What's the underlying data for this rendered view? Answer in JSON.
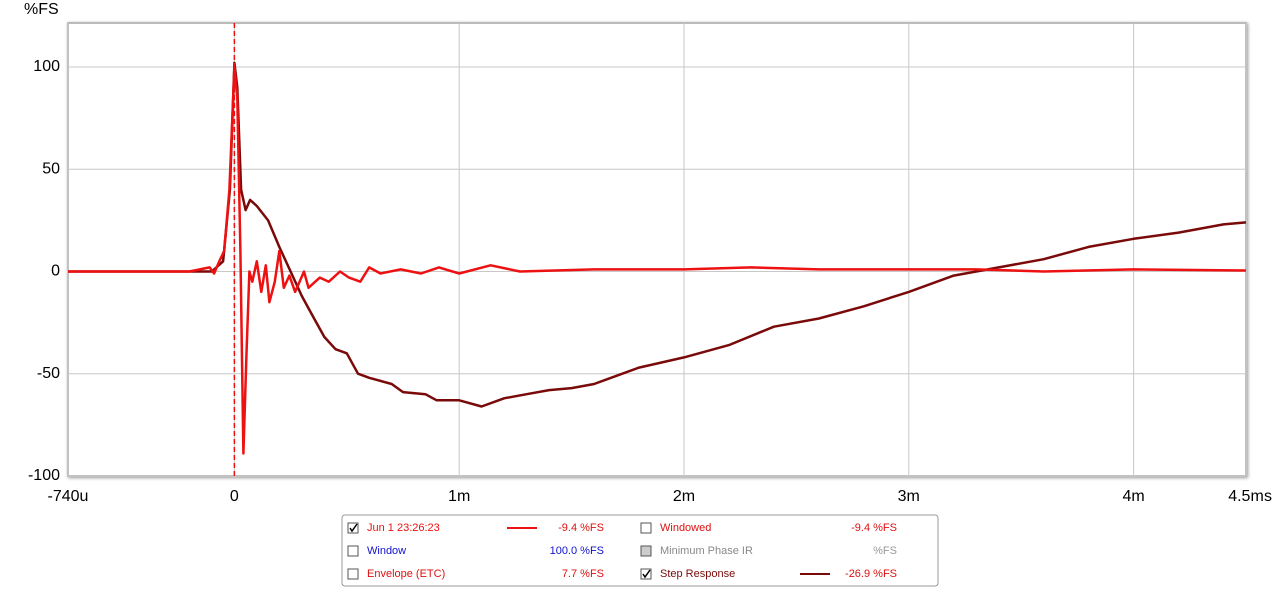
{
  "chart_data": {
    "type": "line",
    "y_label": "%FS",
    "x_unit": "s",
    "xlim": [
      -0.00074,
      0.0045
    ],
    "ylim": [
      -100,
      121.5
    ],
    "xticks": [
      {
        "value": -0.00074,
        "label": "-740u"
      },
      0,
      {
        "value": 0.001,
        "label": "1m"
      },
      {
        "value": 0.002,
        "label": "2m"
      },
      {
        "value": 0.003,
        "label": "3m"
      },
      {
        "value": 0.004,
        "label": "4m"
      },
      {
        "value": 0.0045,
        "label": "4.5m"
      }
    ],
    "yticks": [
      100,
      50,
      0,
      -50,
      -100
    ],
    "grid": true,
    "cursor_x": 0,
    "series": [
      {
        "name": "Jun 1 23:26:23",
        "color": "#ee1111",
        "checked": true,
        "readout": "-9.4 %FS",
        "x": [
          -0.00074,
          -0.0002,
          -0.00011,
          -9e-05,
          -6.7e-05,
          -4.5e-05,
          -2.2e-05,
          0,
          1.3e-05,
          2.7e-05,
          4e-05,
          5.4e-05,
          6.7e-05,
          8e-05,
          0.0001,
          0.00012,
          0.00014,
          0.000156,
          0.00018,
          0.0002,
          0.00022,
          0.000245,
          0.00027,
          0.00029,
          0.00031,
          0.00033,
          0.00038,
          0.00042,
          0.00047,
          0.00051,
          0.00056,
          0.0006,
          0.00065,
          0.00074,
          0.00083,
          0.00091,
          0.001,
          0.00114,
          0.00127,
          0.0016,
          0.002,
          0.0023,
          0.0026,
          0.003,
          0.0033,
          0.0036,
          0.004,
          0.0045
        ],
        "values": [
          0,
          0,
          2,
          -1,
          5,
          10,
          40,
          100,
          85,
          10,
          -89,
          -40,
          0,
          -5,
          5,
          -10,
          3,
          -15,
          -5,
          10,
          -8,
          -2,
          -10,
          -5,
          0,
          -8,
          -3,
          -5,
          0,
          -3,
          -5,
          2,
          -1,
          1,
          -1,
          2,
          -1,
          3,
          0,
          1,
          1,
          2,
          1,
          1,
          1,
          0,
          1,
          0.5
        ]
      },
      {
        "name": "Step Response",
        "color": "#7a0a0a",
        "checked": true,
        "readout": "-26.9 %FS",
        "x": [
          -0.00074,
          -0.0001,
          -5e-05,
          -2e-05,
          0,
          1.3e-05,
          3e-05,
          5e-05,
          7e-05,
          0.0001,
          0.00015,
          0.0002,
          0.00025,
          0.0003,
          0.00035,
          0.0004,
          0.00045,
          0.0005,
          0.00055,
          0.0006,
          0.0007,
          0.00075,
          0.00085,
          0.0009,
          0.001,
          0.0011,
          0.0012,
          0.0013,
          0.0014,
          0.0015,
          0.0016,
          0.0017,
          0.0018,
          0.002,
          0.0022,
          0.0024,
          0.0026,
          0.0028,
          0.003,
          0.0032,
          0.0034,
          0.0036,
          0.0038,
          0.004,
          0.0042,
          0.0044,
          0.0045
        ],
        "values": [
          0,
          0,
          5,
          40,
          102,
          90,
          40,
          30,
          35,
          32,
          25,
          12,
          0,
          -12,
          -22,
          -32,
          -38,
          -40,
          -50,
          -52,
          -55,
          -59,
          -60,
          -63,
          -63,
          -66,
          -62,
          -60,
          -58,
          -57,
          -55,
          -51,
          -47,
          -42,
          -36,
          -27,
          -23,
          -17,
          -10,
          -2,
          2,
          6,
          12,
          16,
          19,
          23,
          24
        ]
      }
    ],
    "other_traces": [
      {
        "name": "Windowed",
        "color": "#dd1111",
        "checked": false,
        "readout": "-9.4 %FS"
      },
      {
        "name": "Window",
        "color": "#1111cc",
        "checked": false,
        "readout": "100.0 %FS"
      },
      {
        "name": "Minimum Phase IR",
        "color": "#888888",
        "checked": false,
        "disabled": true,
        "readout": "%FS"
      },
      {
        "name": "Envelope (ETC)",
        "color": "#dd1111",
        "checked": false,
        "readout": "7.7 %FS"
      }
    ]
  }
}
